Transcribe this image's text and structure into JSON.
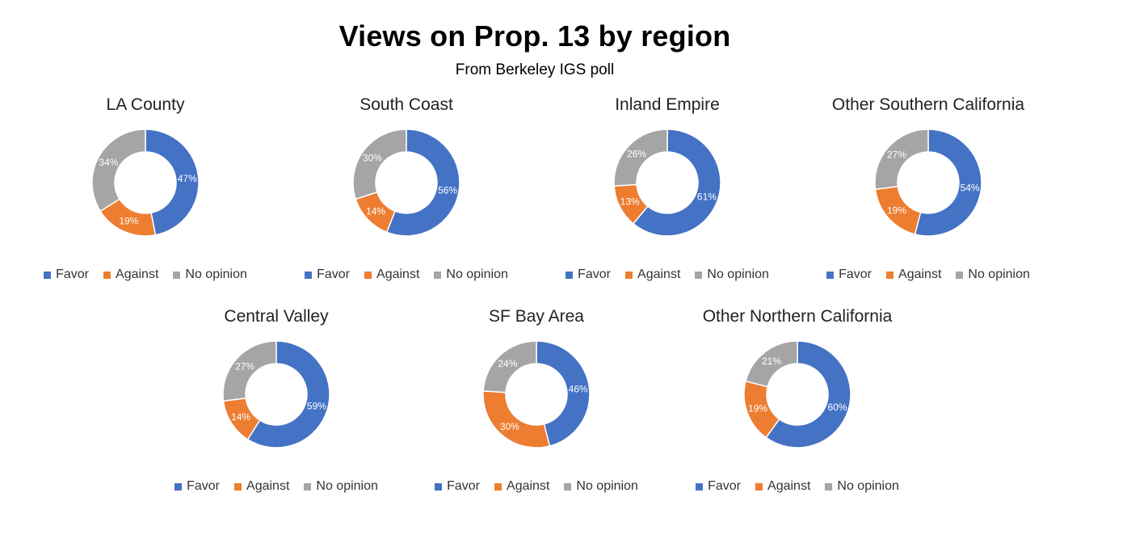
{
  "title": "Views on Prop. 13 by region",
  "subtitle": "From Berkeley IGS poll",
  "colors": {
    "Favor": "#4472C4",
    "Against": "#ED7D31",
    "No opinion": "#A5A5A5"
  },
  "chart_data": [
    {
      "type": "pie",
      "title": "LA County",
      "categories": [
        "Favor",
        "Against",
        "No opinion"
      ],
      "values": [
        47,
        19,
        34
      ],
      "labels": [
        "47%",
        "19%",
        "34%"
      ],
      "legend": "bottom"
    },
    {
      "type": "pie",
      "title": "South Coast",
      "categories": [
        "Favor",
        "Against",
        "No opinion"
      ],
      "values": [
        56,
        14,
        30
      ],
      "labels": [
        "56%",
        "14%",
        "30%"
      ],
      "legend": "bottom"
    },
    {
      "type": "pie",
      "title": "Inland Empire",
      "categories": [
        "Favor",
        "Against",
        "No opinion"
      ],
      "values": [
        61,
        13,
        26
      ],
      "labels": [
        "61%",
        "13%",
        "26%"
      ],
      "legend": "bottom"
    },
    {
      "type": "pie",
      "title": "Other Southern California",
      "categories": [
        "Favor",
        "Against",
        "No opinion"
      ],
      "values": [
        54,
        19,
        27
      ],
      "labels": [
        "54%",
        "19%",
        "27%"
      ],
      "legend": "bottom"
    },
    {
      "type": "pie",
      "title": "Central Valley",
      "categories": [
        "Favor",
        "Against",
        "No opinion"
      ],
      "values": [
        59,
        14,
        27
      ],
      "labels": [
        "59%",
        "14%",
        "27%"
      ],
      "legend": "bottom"
    },
    {
      "type": "pie",
      "title": "SF Bay Area",
      "categories": [
        "Favor",
        "Against",
        "No opinion"
      ],
      "values": [
        46,
        30,
        24
      ],
      "labels": [
        "46%",
        "30%",
        "24%"
      ],
      "legend": "bottom"
    },
    {
      "type": "pie",
      "title": "Other Northern California",
      "categories": [
        "Favor",
        "Against",
        "No opinion"
      ],
      "values": [
        60,
        19,
        21
      ],
      "labels": [
        "60%",
        "19%",
        "21%"
      ],
      "legend": "bottom"
    }
  ]
}
